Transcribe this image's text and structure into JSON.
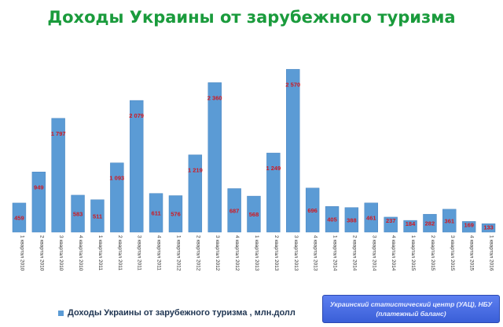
{
  "title": "Доходы Украины от зарубежного туризма",
  "legend": {
    "label": "Доходы Украины от зарубежного туризма , млн.долл"
  },
  "source": {
    "line1": "Украинский статистический центр (УАЦ), НБУ",
    "line2": "(платежный баланс)"
  },
  "colors": {
    "bar": "#5b9bd5",
    "value_label": "#d2171e",
    "title": "#1a9b3c"
  },
  "chart_data": {
    "type": "bar",
    "title": "Доходы Украины от зарубежного туризма",
    "series": [
      {
        "name": "Доходы Украины от зарубежного туризма , млн.долл",
        "values": [
          459,
          949,
          1797,
          583,
          511,
          1093,
          2079,
          611,
          576,
          1219,
          2360,
          687,
          568,
          1249,
          2570,
          696,
          405,
          388,
          461,
          237,
          184,
          282,
          361,
          169,
          133
        ]
      }
    ],
    "categories": [
      "1 квартал 2010",
      "2 квартал 2010",
      "3 квартал 2010",
      "4 квартал 2010",
      "1 квартал 2011",
      "2 квартал 2011",
      "3 квартал 2011",
      "4 квартал 2011",
      "1 квартал 2012",
      "2 квартал 2012",
      "3 квартал 2012",
      "4 квартал 2012",
      "1 квартал 2013",
      "2 квартал 2013",
      "3 квартал 2013",
      "4 квартал 2013",
      "1 квартал 2014",
      "2 квартал 2014",
      "3 квартал 2014",
      "4 квартал 2014",
      "1 квартал 2015",
      "2 квартал 2015",
      "3 квартал 2015",
      "4 квартал 2015",
      "1 квартал 2016"
    ],
    "value_labels": [
      "459",
      "949",
      "1 797",
      "583",
      "511",
      "1 093",
      "2 079",
      "611",
      "576",
      "1 219",
      "2 360",
      "687",
      "568",
      "1 249",
      "2 570",
      "696",
      "405",
      "388",
      "461",
      "237",
      "184",
      "282",
      "361",
      "169",
      "133"
    ],
    "ylim": [
      0,
      2600
    ],
    "grid": false,
    "legend_position": "bottom-left"
  }
}
